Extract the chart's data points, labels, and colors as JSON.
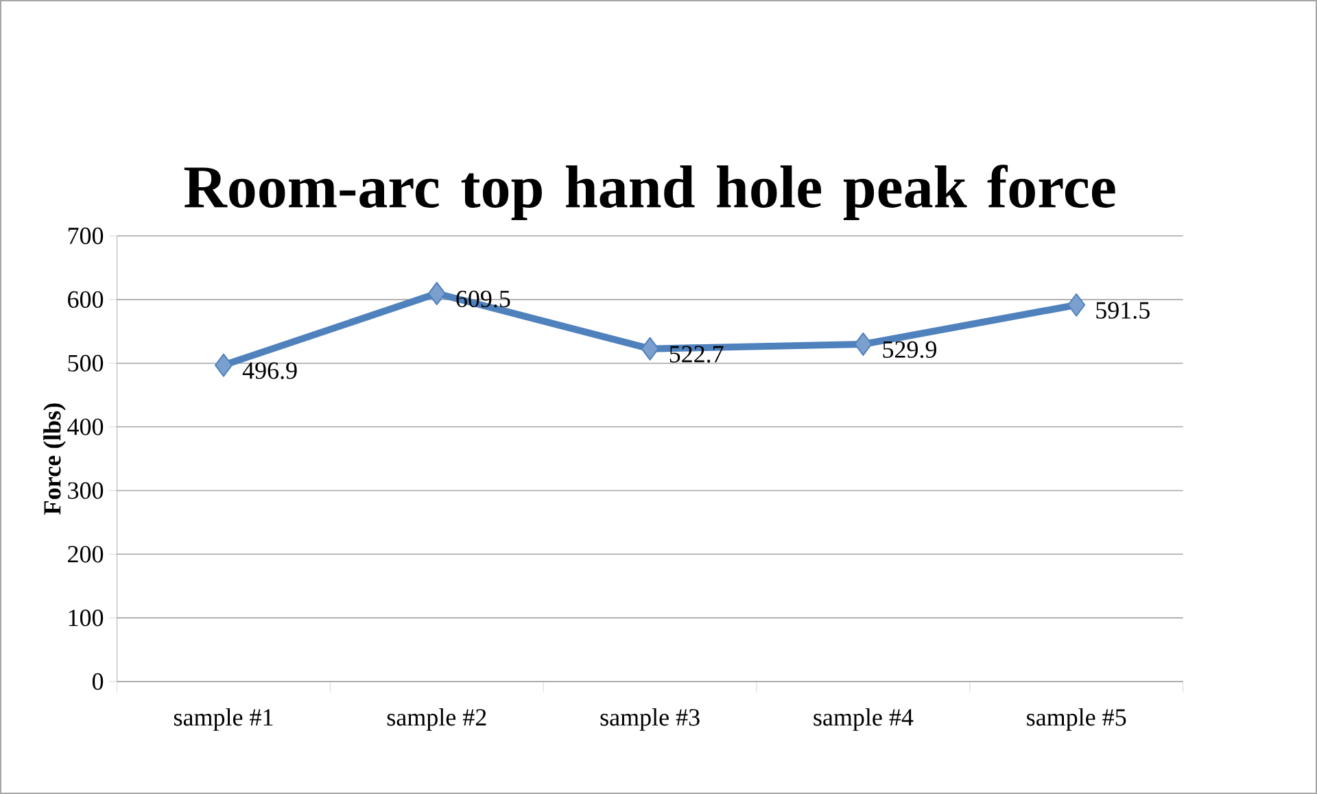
{
  "chart_data": {
    "type": "line",
    "title": "Room-arc top hand hole peak force",
    "ylabel": "Force (lbs)",
    "categories": [
      "sample #1",
      "sample #2",
      "sample #3",
      "sample #4",
      "sample #5"
    ],
    "series": [
      {
        "color": "#4f81bd",
        "values": [
          496.9,
          609.5,
          522.7,
          529.9,
          591.5
        ]
      }
    ],
    "ylim": [
      0,
      700
    ],
    "yticks": [
      0,
      100,
      200,
      300,
      400,
      500,
      600,
      700
    ],
    "grid": "y",
    "marker": "diamond",
    "line_style": "solid",
    "data_labels": true,
    "legend": false
  }
}
